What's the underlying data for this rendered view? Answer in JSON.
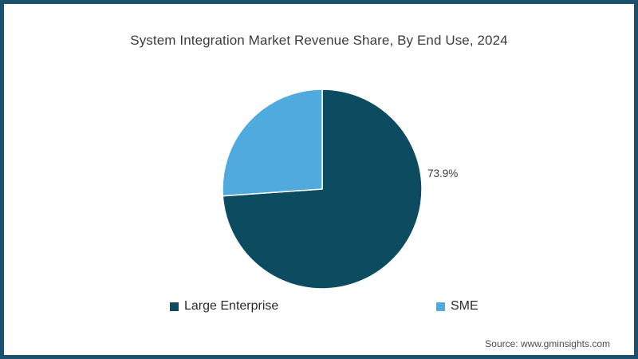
{
  "frame": {
    "border_color": "#1a4f6e",
    "background": "#ffffff"
  },
  "header": {
    "title": "System Integration Market Revenue Share, By End Use, 2024"
  },
  "chart_data": {
    "type": "pie",
    "title": "System Integration Market Revenue Share, By End Use, 2024",
    "categories": [
      "Large Enterprise",
      "SME"
    ],
    "values": [
      73.9,
      26.1
    ],
    "colors": [
      "#0d4c60",
      "#4faade"
    ],
    "data_labels": [
      "73.9%",
      ""
    ],
    "start_angle": "12 o'clock",
    "direction": "clockwise",
    "legend_position": "bottom",
    "slice_stroke_color": "#ffffff"
  },
  "annotations": {
    "share_label": "73.9%"
  },
  "legend": {
    "items": [
      {
        "label": "Large Enterprise",
        "color": "#0d4c60"
      },
      {
        "label": "SME",
        "color": "#4faade"
      }
    ]
  },
  "footer": {
    "source": "Source: www.gminsights.com"
  }
}
